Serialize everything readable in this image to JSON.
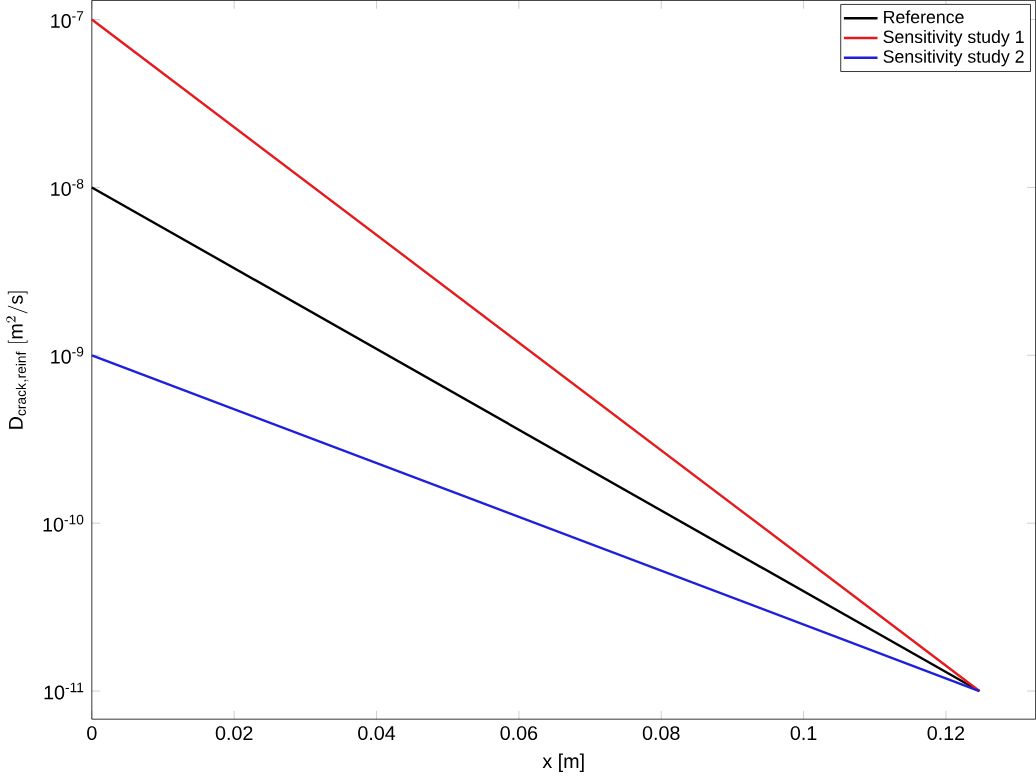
{
  "chart_data": {
    "type": "line",
    "xlabel": "x [m]",
    "ylabel": "\\mathrm{D}_{\\mathrm{crack,reinf}}\\ [\\mathrm{m}^{2}/\\mathrm{s}]",
    "log": "y",
    "legend": "top right",
    "grid": false,
    "xlim": [
      0,
      0.1326
    ],
    "ylim": [
      6.8e-12,
      1.3e-07
    ],
    "xticks": [
      0,
      0.02,
      0.04,
      0.06,
      0.08,
      0.1,
      0.12
    ],
    "yticks": [
      {
        "value": 1e-11,
        "label": "10$^{-11}$"
      },
      {
        "value": 1e-10,
        "label": "10$^{-10}$"
      },
      {
        "value": 1e-09,
        "label": "10$^{-9}$"
      },
      {
        "value": 1e-08,
        "label": "10$^{-8}$"
      },
      {
        "value": 1e-07,
        "label": "10$^{-7}$"
      }
    ],
    "x": [
      0,
      0.1247
    ],
    "series": [
      {
        "name": "Reference",
        "color": "#000000",
        "values": [
          1e-08,
          1e-11
        ]
      },
      {
        "name": "Sensitivity study 1",
        "color": "#e41a1c",
        "values": [
          1e-07,
          1e-11
        ]
      },
      {
        "name": "Sensitivity study 2",
        "color": "#1f1fdc",
        "values": [
          1e-09,
          1e-11
        ]
      }
    ]
  }
}
